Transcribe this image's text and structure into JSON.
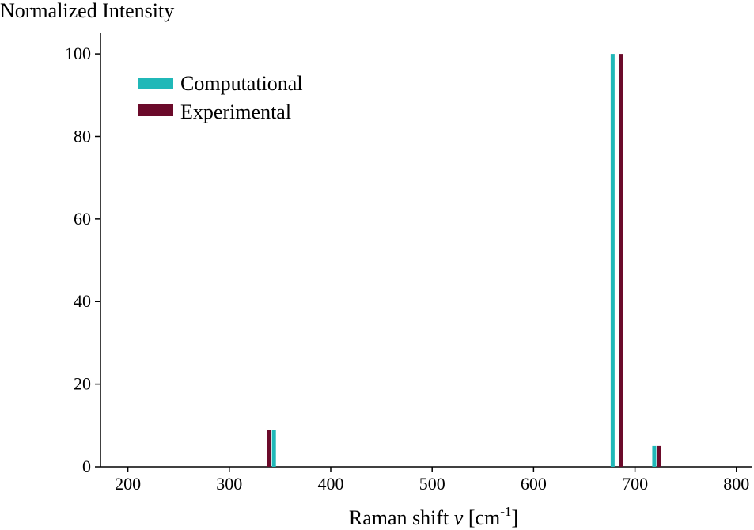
{
  "chart_data": {
    "type": "bar",
    "ylabel": "Normalized Intensity",
    "xlabel_main": "Raman shift ",
    "xlabel_symbol": "ν",
    "xlabel_unit_open": " [cm",
    "xlabel_unit_sup": "-1",
    "xlabel_unit_close": "]",
    "xlim": [
      173,
      815
    ],
    "ylim": [
      0,
      105
    ],
    "xticks": [
      200,
      300,
      400,
      500,
      600,
      700,
      800
    ],
    "yticks": [
      0,
      20,
      40,
      60,
      80,
      100
    ],
    "grid": false,
    "legend_position": "top-left",
    "series": [
      {
        "name": "Computational",
        "color": "#20b8b8",
        "points": [
          {
            "x": 344,
            "y": 9
          },
          {
            "x": 678,
            "y": 100
          },
          {
            "x": 719,
            "y": 5
          }
        ]
      },
      {
        "name": "Experimental",
        "color": "#6b0a2a",
        "points": [
          {
            "x": 339,
            "y": 9
          },
          {
            "x": 686,
            "y": 100
          },
          {
            "x": 724,
            "y": 5
          }
        ]
      }
    ]
  }
}
